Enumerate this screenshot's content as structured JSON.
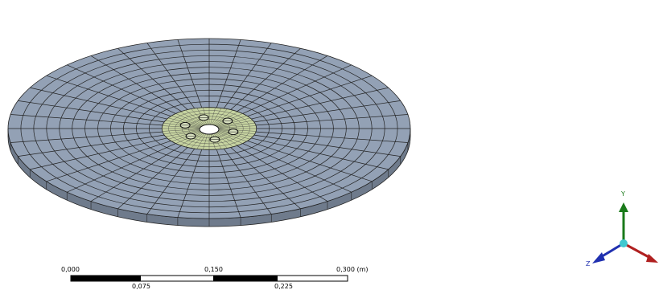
{
  "scale_bar": {
    "top_labels": [
      "0,000",
      "0,150",
      "0,300 (m)"
    ],
    "bottom_labels": [
      "0,075",
      "0,225"
    ]
  },
  "triad": {
    "y_label": "Y",
    "z_label": "Z"
  }
}
